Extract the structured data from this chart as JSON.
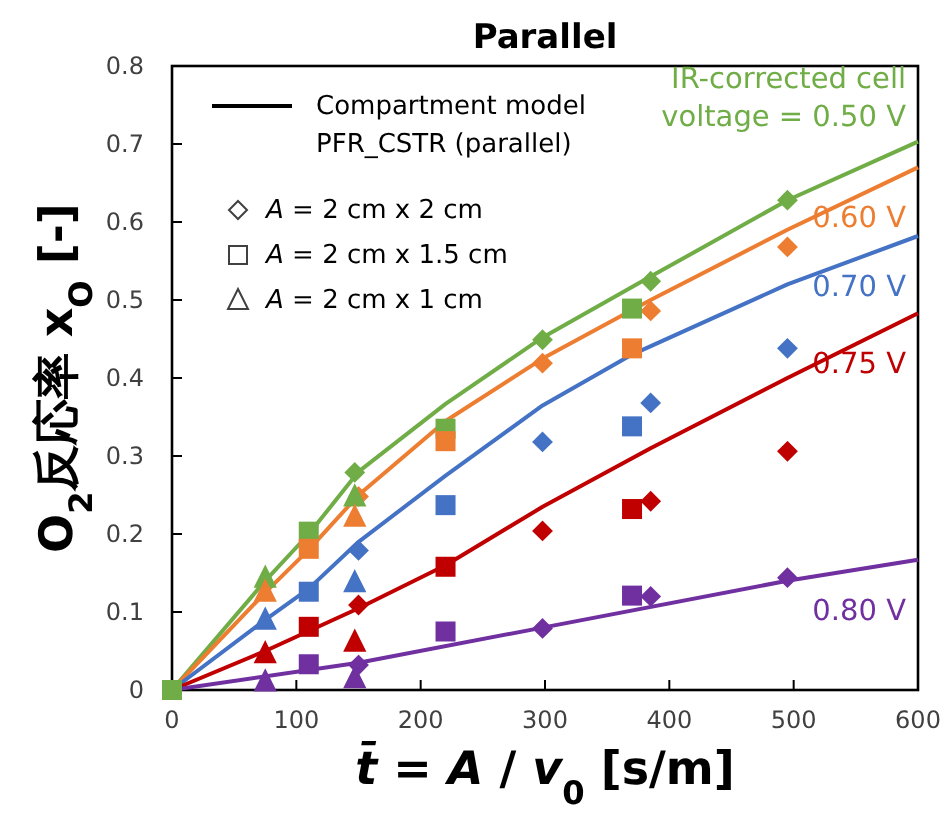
{
  "chart_data": {
    "type": "scatter",
    "title": "Parallel",
    "xlabel": "*t̄* = *A* / *v*$_{0}$ [s/m]",
    "ylabel": "O$_{2}$反応率 x$_{O}$ [-]",
    "xlim": [
      0,
      600
    ],
    "xticks": [
      0,
      100,
      200,
      300,
      400,
      500,
      600
    ],
    "ylim": [
      0,
      0.8
    ],
    "yticks": [
      0,
      0.1,
      0.2,
      0.3,
      0.4,
      0.5,
      0.6,
      0.7,
      0.8
    ],
    "grid": false,
    "annotations": [
      "Compartment model PFR_CSTR (parallel)",
      "*A* = 2 cm x 2 cm",
      "*A* = 2 cm x 1.5 cm",
      "*A* = 2 cm x 1 cm"
    ],
    "series": [
      {
        "type": "line",
        "marker": "none",
        "name": "IR-corrected cell voltage = 0.50 V",
        "color": "#70ad47",
        "x": [
          0,
          75,
          110,
          150,
          220,
          298,
          385,
          495,
          600
        ],
        "values": [
          0,
          0.14,
          0.2,
          0.28,
          0.367,
          0.452,
          0.53,
          0.628,
          0.703
        ]
      },
      {
        "type": "line",
        "marker": "none",
        "name": "0.60 V",
        "color": "#ed7d31",
        "x": [
          0,
          75,
          110,
          150,
          220,
          298,
          385,
          495,
          600
        ],
        "values": [
          0,
          0.125,
          0.18,
          0.25,
          0.345,
          0.425,
          0.5,
          0.59,
          0.67
        ]
      },
      {
        "type": "line",
        "marker": "none",
        "name": "0.70 V",
        "color": "#4472c4",
        "x": [
          0,
          75,
          110,
          150,
          220,
          298,
          370,
          495,
          600
        ],
        "values": [
          0,
          0.09,
          0.13,
          0.19,
          0.275,
          0.365,
          0.43,
          0.52,
          0.582
        ]
      },
      {
        "type": "line",
        "marker": "none",
        "name": "0.75 V",
        "color": "#c00000",
        "x": [
          0,
          75,
          150,
          220,
          298,
          385,
          495,
          600
        ],
        "values": [
          0,
          0.05,
          0.105,
          0.16,
          0.235,
          0.31,
          0.4,
          0.483
        ]
      },
      {
        "type": "line",
        "marker": "none",
        "name": "0.80 V",
        "color": "#7030a0",
        "x": [
          0,
          150,
          298,
          495,
          600
        ],
        "values": [
          0,
          0.035,
          0.08,
          0.14,
          0.167
        ]
      },
      {
        "marker": "diamond",
        "color": "#70ad47",
        "x": [
          147,
          298,
          385,
          495
        ],
        "values": [
          0.279,
          0.449,
          0.524,
          0.628
        ]
      },
      {
        "marker": "square",
        "color": "#70ad47",
        "x": [
          0,
          110,
          220,
          370
        ],
        "values": [
          0,
          0.203,
          0.335,
          0.489
        ]
      },
      {
        "marker": "triangle",
        "color": "#70ad47",
        "x": [
          75,
          147
        ],
        "values": [
          0.144,
          0.248
        ]
      },
      {
        "marker": "diamond",
        "color": "#ed7d31",
        "x": [
          150,
          298,
          385,
          495
        ],
        "values": [
          0.248,
          0.419,
          0.486,
          0.568
        ]
      },
      {
        "marker": "square",
        "color": "#ed7d31",
        "x": [
          110,
          220,
          370
        ],
        "values": [
          0.181,
          0.319,
          0.438
        ]
      },
      {
        "marker": "triangle",
        "color": "#ed7d31",
        "x": [
          75,
          147
        ],
        "values": [
          0.126,
          0.222
        ]
      },
      {
        "marker": "diamond",
        "color": "#4472c4",
        "x": [
          150,
          298,
          385,
          495
        ],
        "values": [
          0.179,
          0.318,
          0.368,
          0.438
        ]
      },
      {
        "marker": "square",
        "color": "#4472c4",
        "x": [
          110,
          220,
          370
        ],
        "values": [
          0.126,
          0.237,
          0.338
        ]
      },
      {
        "marker": "triangle",
        "color": "#4472c4",
        "x": [
          75,
          147
        ],
        "values": [
          0.09,
          0.138
        ]
      },
      {
        "marker": "diamond",
        "color": "#c00000",
        "x": [
          150,
          298,
          385,
          495
        ],
        "values": [
          0.109,
          0.204,
          0.242,
          0.306
        ]
      },
      {
        "marker": "square",
        "color": "#c00000",
        "x": [
          110,
          220,
          370
        ],
        "values": [
          0.081,
          0.158,
          0.232
        ]
      },
      {
        "marker": "triangle",
        "color": "#c00000",
        "x": [
          75,
          147
        ],
        "values": [
          0.047,
          0.062
        ]
      },
      {
        "marker": "diamond",
        "color": "#7030a0",
        "x": [
          150,
          298,
          385,
          495
        ],
        "values": [
          0.032,
          0.079,
          0.12,
          0.144
        ]
      },
      {
        "marker": "square",
        "color": "#7030a0",
        "x": [
          110,
          220,
          370
        ],
        "values": [
          0.033,
          0.075,
          0.121
        ]
      },
      {
        "marker": "triangle",
        "color": "#7030a0",
        "x": [
          75,
          147
        ],
        "values": [
          0.011,
          0.015
        ]
      }
    ]
  }
}
